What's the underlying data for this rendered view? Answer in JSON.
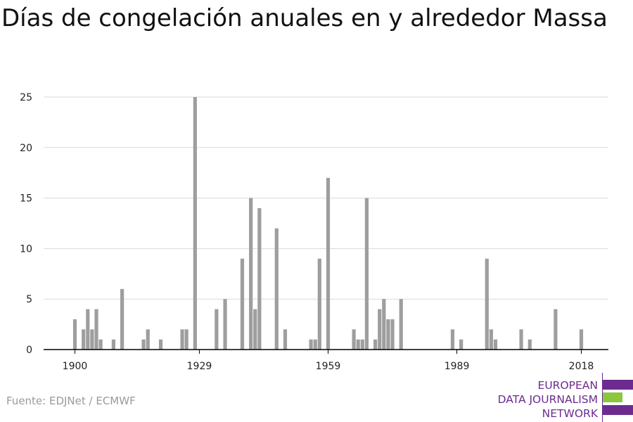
{
  "chart_data": {
    "type": "bar",
    "title": "Días de congelación anuales en y alrededor Massa",
    "xlabel": "",
    "ylabel": "",
    "x": [
      1900,
      1901,
      1902,
      1903,
      1904,
      1905,
      1906,
      1907,
      1908,
      1909,
      1910,
      1911,
      1912,
      1913,
      1914,
      1915,
      1916,
      1917,
      1918,
      1919,
      1920,
      1921,
      1922,
      1923,
      1924,
      1925,
      1926,
      1927,
      1928,
      1929,
      1930,
      1931,
      1932,
      1933,
      1934,
      1935,
      1936,
      1937,
      1938,
      1939,
      1940,
      1941,
      1942,
      1943,
      1944,
      1945,
      1946,
      1947,
      1948,
      1949,
      1950,
      1951,
      1952,
      1953,
      1954,
      1955,
      1956,
      1957,
      1958,
      1959,
      1960,
      1961,
      1962,
      1963,
      1964,
      1965,
      1966,
      1967,
      1968,
      1969,
      1970,
      1971,
      1972,
      1973,
      1974,
      1975,
      1976,
      1977,
      1978,
      1979,
      1980,
      1981,
      1982,
      1983,
      1984,
      1985,
      1986,
      1987,
      1988,
      1989,
      1990,
      1991,
      1992,
      1993,
      1994,
      1995,
      1996,
      1997,
      1998,
      1999,
      2000,
      2001,
      2002,
      2003,
      2004,
      2005,
      2006,
      2007,
      2008,
      2009,
      2010,
      2011,
      2012,
      2013,
      2014,
      2015,
      2016,
      2017,
      2018,
      2019
    ],
    "values": [
      3,
      0,
      2,
      4,
      2,
      4,
      1,
      0,
      0,
      1,
      0,
      6,
      0,
      0,
      0,
      0,
      1,
      2,
      0,
      0,
      1,
      0,
      0,
      0,
      0,
      2,
      2,
      0,
      25,
      0,
      0,
      0,
      0,
      4,
      0,
      5,
      0,
      0,
      0,
      9,
      0,
      15,
      4,
      14,
      0,
      0,
      0,
      12,
      0,
      2,
      0,
      0,
      0,
      0,
      0,
      1,
      1,
      9,
      0,
      17,
      0,
      0,
      0,
      0,
      0,
      2,
      1,
      1,
      15,
      0,
      1,
      4,
      5,
      3,
      3,
      0,
      5,
      0,
      0,
      0,
      0,
      0,
      0,
      0,
      0,
      0,
      0,
      0,
      2,
      0,
      1,
      0,
      0,
      0,
      0,
      0,
      9,
      2,
      1,
      0,
      0,
      0,
      0,
      0,
      2,
      0,
      1,
      0,
      0,
      0,
      0,
      0,
      4,
      0,
      0,
      0,
      0,
      0,
      2,
      0
    ],
    "xticks": [
      "1900",
      "1929",
      "1959",
      "1989",
      "2018"
    ],
    "yticks": [
      "0",
      "5",
      "10",
      "15",
      "20",
      "25"
    ],
    "ylim": [
      0,
      25
    ],
    "grid": true,
    "legend": "none",
    "colors": {
      "bar": "#9e9e9e",
      "grid": "#d9d9d9",
      "axis": "#000000"
    }
  },
  "source": "Fuente: EDJNet / ECMWF",
  "logo": {
    "lines": [
      "EUROPEAN",
      "DATA JOURNALISM",
      "NETWORK"
    ],
    "colors": {
      "text": "#6c2c8f",
      "purple": "#6c2c8f",
      "green": "#8cc63f"
    }
  }
}
